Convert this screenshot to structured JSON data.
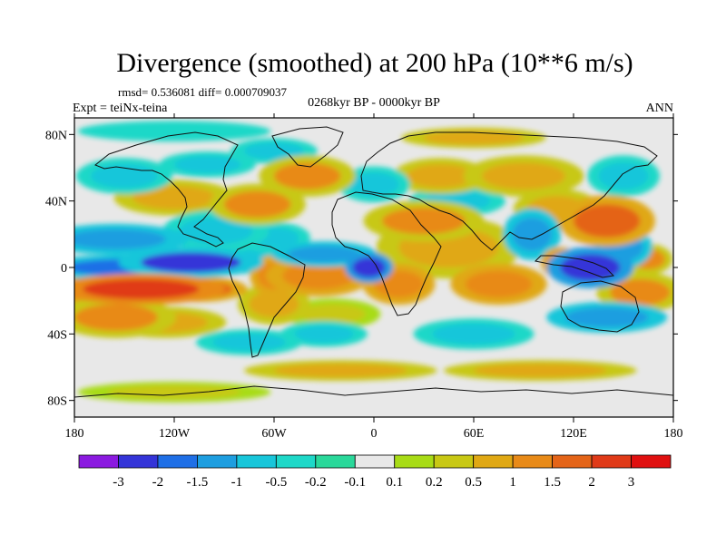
{
  "chart_data": {
    "type": "heatmap",
    "title": "Divergence (smoothed) at 200 hPa (10**6 m/s)",
    "stats_line": "rmsd= 0.536081 diff= 0.000709037",
    "left_label": "Expt = teiNx-teina",
    "center_label": "0268kyr BP - 0000kyr BP",
    "right_label": "ANN",
    "x_axis": {
      "range": [
        -180,
        180
      ],
      "ticks": [
        -180,
        -120,
        -60,
        0,
        60,
        120,
        180
      ],
      "tick_labels": [
        "180",
        "120W",
        "60W",
        "0",
        "60E",
        "120E",
        "180"
      ]
    },
    "y_axis": {
      "range": [
        -90,
        90
      ],
      "ticks": [
        80,
        40,
        0,
        -40,
        -80
      ],
      "tick_labels": [
        "80N",
        "40N",
        "0",
        "40S",
        "80S"
      ]
    },
    "colorbar": {
      "colors": [
        "#8b1ae0",
        "#3434d8",
        "#1f6fe6",
        "#1e9ee0",
        "#18c6da",
        "#1ed8c8",
        "#2ad89a",
        "#e8e8e8",
        "#a8dc16",
        "#c8c814",
        "#e0a814",
        "#e88a18",
        "#e46418",
        "#e03a18",
        "#e01010"
      ],
      "labels": [
        "-3",
        "-2",
        "-1.5",
        "-1",
        "-0.5",
        "-0.2",
        "-0.1",
        "0.1",
        "0.2",
        "0.5",
        "1",
        "1.5",
        "2",
        "3"
      ]
    },
    "features": [
      {
        "lon": -150,
        "lat": 0,
        "dlon": 35,
        "dlat": 5,
        "val": -2.0
      },
      {
        "lon": -110,
        "lat": 3,
        "dlon": 30,
        "dlat": 6,
        "val": -2.2
      },
      {
        "lon": -140,
        "lat": -13,
        "dlon": 35,
        "dlat": 6,
        "val": 2.4
      },
      {
        "lon": -105,
        "lat": -13,
        "dlon": 20,
        "dlat": 5,
        "val": 1.8
      },
      {
        "lon": -155,
        "lat": -30,
        "dlon": 25,
        "dlat": 8,
        "val": 1.1
      },
      {
        "lon": -125,
        "lat": -33,
        "dlon": 25,
        "dlat": 6,
        "val": 0.9
      },
      {
        "lon": -175,
        "lat": -18,
        "dlon": 12,
        "dlat": 8,
        "val": 0.7
      },
      {
        "lon": -155,
        "lat": 17,
        "dlon": 30,
        "dlat": 6,
        "val": -1.2
      },
      {
        "lon": -95,
        "lat": 22,
        "dlon": 22,
        "dlat": 8,
        "val": -1.0
      },
      {
        "lon": -60,
        "lat": 18,
        "dlon": 15,
        "dlat": 6,
        "val": -0.8
      },
      {
        "lon": -70,
        "lat": 5,
        "dlon": 14,
        "dlat": 6,
        "val": -0.6
      },
      {
        "lon": -60,
        "lat": -5,
        "dlon": 10,
        "dlat": 8,
        "val": 1.2
      },
      {
        "lon": -33,
        "lat": -5,
        "dlon": 22,
        "dlat": 8,
        "val": 1.3
      },
      {
        "lon": -30,
        "lat": 8,
        "dlon": 22,
        "dlat": 5,
        "val": -1.3
      },
      {
        "lon": -3,
        "lat": 0,
        "dlon": 10,
        "dlat": 6,
        "val": -3.0
      },
      {
        "lon": -60,
        "lat": -22,
        "dlon": 15,
        "dlat": 8,
        "val": 0.6
      },
      {
        "lon": -25,
        "lat": -28,
        "dlon": 20,
        "dlat": 6,
        "val": 0.4
      },
      {
        "lon": -30,
        "lat": -40,
        "dlon": 18,
        "dlat": 5,
        "val": -0.6
      },
      {
        "lon": -75,
        "lat": -45,
        "dlon": 22,
        "dlat": 5,
        "val": -0.7
      },
      {
        "lon": 15,
        "lat": -10,
        "dlon": 15,
        "dlat": 8,
        "val": 1.2
      },
      {
        "lon": 45,
        "lat": 12,
        "dlon": 30,
        "dlat": 12,
        "val": 0.7
      },
      {
        "lon": 30,
        "lat": 28,
        "dlon": 25,
        "dlat": 8,
        "val": 1.0
      },
      {
        "lon": 75,
        "lat": -10,
        "dlon": 20,
        "dlat": 8,
        "val": 1.3
      },
      {
        "lon": 95,
        "lat": 20,
        "dlon": 12,
        "dlat": 10,
        "val": -1.4
      },
      {
        "lon": 112,
        "lat": 3,
        "dlon": 8,
        "dlat": 6,
        "val": 1.4
      },
      {
        "lon": 130,
        "lat": 0,
        "dlon": 18,
        "dlat": 8,
        "val": -2.6
      },
      {
        "lon": 150,
        "lat": 12,
        "dlon": 12,
        "dlat": 8,
        "val": -1.5
      },
      {
        "lon": 140,
        "lat": 28,
        "dlon": 20,
        "dlat": 10,
        "val": 1.6
      },
      {
        "lon": 110,
        "lat": 35,
        "dlon": 18,
        "dlat": 8,
        "val": 0.8
      },
      {
        "lon": 160,
        "lat": -15,
        "dlon": 18,
        "dlat": 8,
        "val": 1.0
      },
      {
        "lon": 165,
        "lat": 5,
        "dlon": 10,
        "dlat": 6,
        "val": 1.1
      },
      {
        "lon": 140,
        "lat": -30,
        "dlon": 25,
        "dlat": 6,
        "val": -1.2
      },
      {
        "lon": 60,
        "lat": -40,
        "dlon": 25,
        "dlat": 6,
        "val": -0.8
      },
      {
        "lon": 50,
        "lat": 40,
        "dlon": 20,
        "dlat": 6,
        "val": -0.7
      },
      {
        "lon": -120,
        "lat": 42,
        "dlon": 25,
        "dlat": 7,
        "val": 0.9
      },
      {
        "lon": -70,
        "lat": 38,
        "dlon": 20,
        "dlat": 8,
        "val": 1.0
      },
      {
        "lon": -40,
        "lat": 55,
        "dlon": 20,
        "dlat": 8,
        "val": 1.1
      },
      {
        "lon": -150,
        "lat": 55,
        "dlon": 20,
        "dlat": 7,
        "val": -0.9
      },
      {
        "lon": -100,
        "lat": 62,
        "dlon": 20,
        "dlat": 5,
        "val": -0.8
      },
      {
        "lon": -60,
        "lat": 70,
        "dlon": 18,
        "dlat": 5,
        "val": -0.9
      },
      {
        "lon": 0,
        "lat": 50,
        "dlon": 15,
        "dlat": 7,
        "val": -1.0
      },
      {
        "lon": 40,
        "lat": 55,
        "dlon": 20,
        "dlat": 7,
        "val": 0.7
      },
      {
        "lon": 90,
        "lat": 55,
        "dlon": 25,
        "dlat": 8,
        "val": 0.7
      },
      {
        "lon": 150,
        "lat": 55,
        "dlon": 15,
        "dlat": 8,
        "val": -0.8
      },
      {
        "lon": 60,
        "lat": 78,
        "dlon": 30,
        "dlat": 4,
        "val": 0.5
      },
      {
        "lon": -120,
        "lat": 82,
        "dlon": 40,
        "dlat": 4,
        "val": -0.5
      },
      {
        "lon": -20,
        "lat": -62,
        "dlon": 40,
        "dlat": 4,
        "val": 0.6
      },
      {
        "lon": 100,
        "lat": -62,
        "dlon": 40,
        "dlat": 4,
        "val": 0.6
      },
      {
        "lon": -120,
        "lat": -75,
        "dlon": 40,
        "dlat": 4,
        "val": 0.4
      }
    ]
  }
}
